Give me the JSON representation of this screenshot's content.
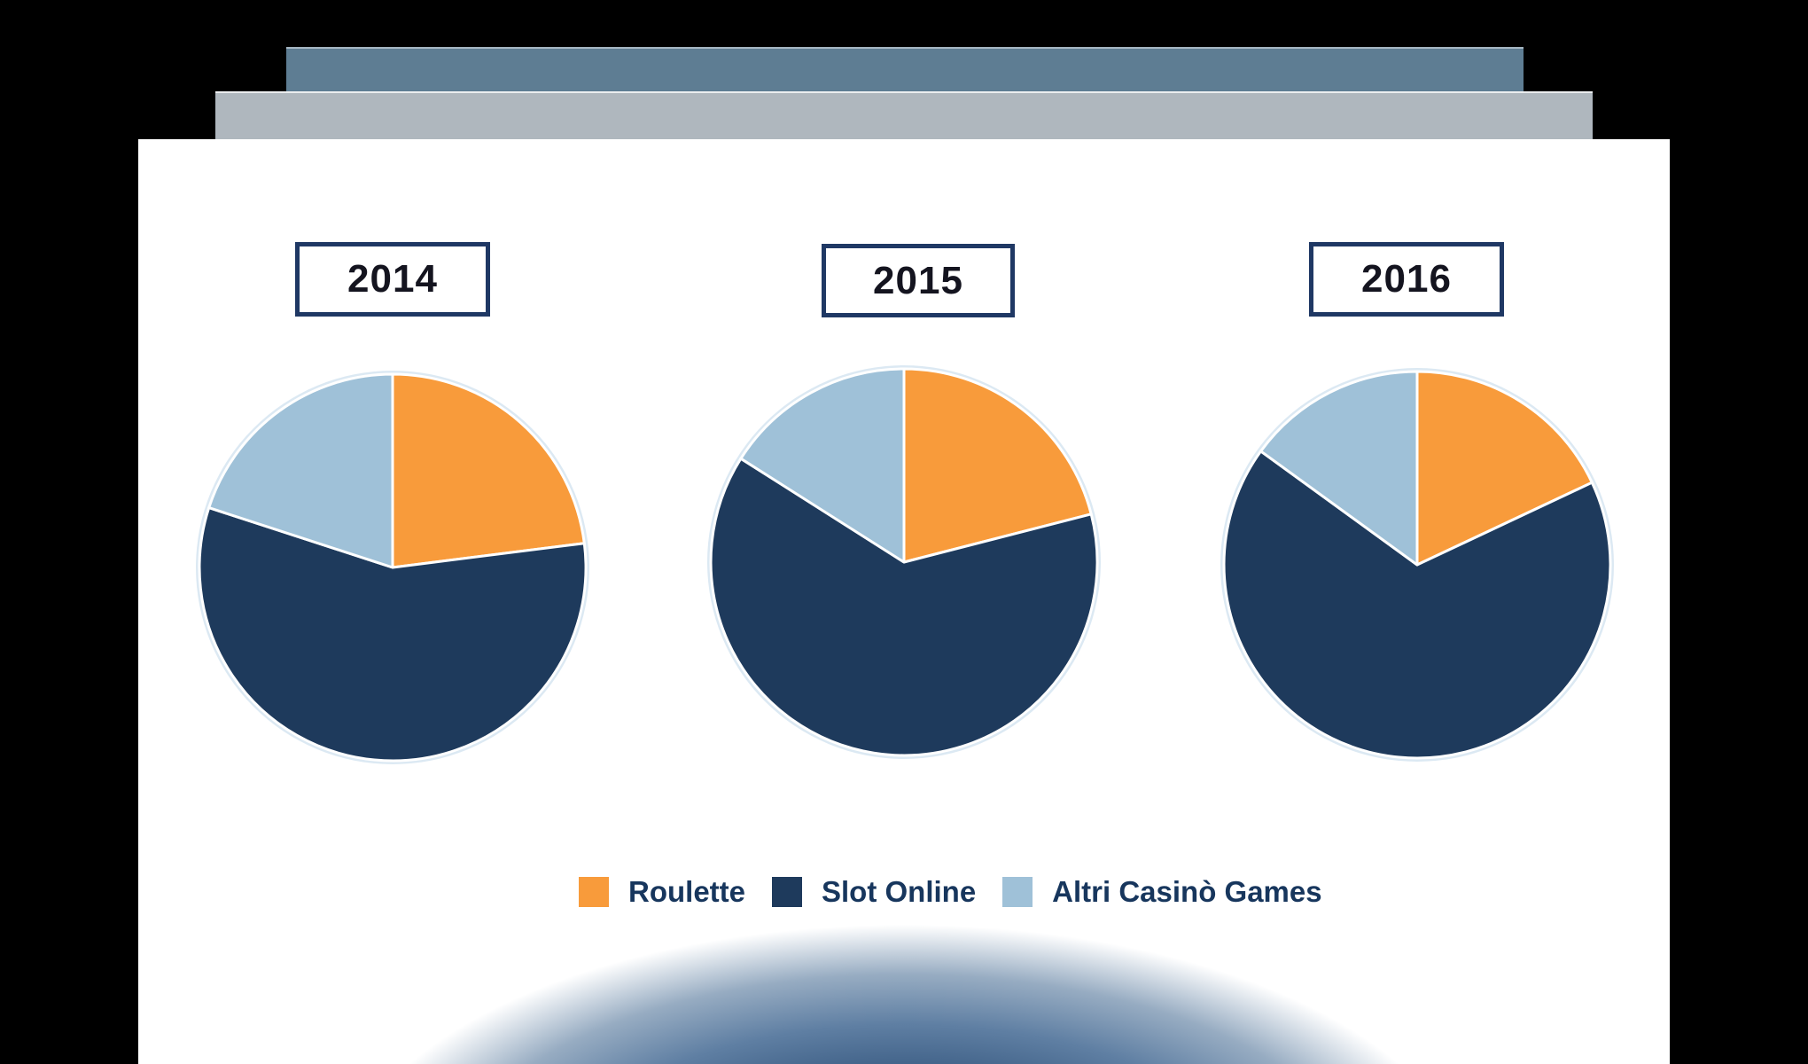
{
  "decor": {
    "top_bar_color": "#5E7D93",
    "second_bar_color": "#AFB7BE",
    "panel_color": "#FFFFFF",
    "vignette_color": "#1C3A5F",
    "year_box_border_color": "#1F3864",
    "year_text_color": "#14141F",
    "legend_text_color": "#17365D"
  },
  "chart_data": {
    "type": "pie",
    "title": "",
    "legend_position": "bottom",
    "categories": [
      "Roulette",
      "Slot Online",
      "Altri Casinò Games"
    ],
    "colors": [
      "#F89B3B",
      "#1E3A5C",
      "#9FC1D8"
    ],
    "slice_separator_color": "#FFFFFF",
    "pies": [
      {
        "label": "2014",
        "values": [
          23,
          57,
          20
        ]
      },
      {
        "label": "2015",
        "values": [
          21,
          63,
          16
        ]
      },
      {
        "label": "2016",
        "values": [
          18,
          67,
          15
        ]
      }
    ]
  },
  "legend": {
    "items": [
      {
        "label": "Roulette"
      },
      {
        "label": "Slot Online"
      },
      {
        "label": "Altri Casinò Games"
      }
    ]
  }
}
